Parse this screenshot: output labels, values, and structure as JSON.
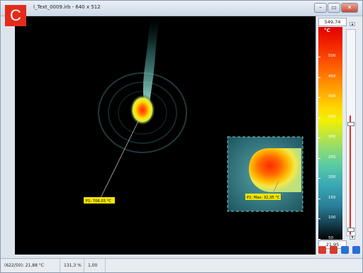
{
  "window": {
    "title": "l_Text_0009.irb - 640 x 512",
    "buttons": {
      "minimize": "–",
      "maximize": "▭",
      "close": "✕"
    }
  },
  "badge": {
    "letter": "C",
    "color": "#e32b1c"
  },
  "scale": {
    "max_value": "549,74",
    "min_value": "21,95",
    "unit": "°C",
    "ticks": [
      "500",
      "450",
      "400",
      "350",
      "300",
      "250",
      "200",
      "150",
      "100",
      "50"
    ],
    "handle_level_upper": 0.55,
    "handle_level_lower": 0.02
  },
  "markers": {
    "p1": {
      "label": "P1: 706,03 °C"
    },
    "p2": {
      "label": "P2, Max: 32,35 °C"
    }
  },
  "toolbar": {
    "icons": [
      {
        "name": "red-tool-icon",
        "color": "#d93b2a"
      },
      {
        "name": "red-tool-icon-2",
        "color": "#d93b2a"
      },
      {
        "name": "blue-tool-icon",
        "color": "#2a6fd9"
      },
      {
        "name": "blue-tool-icon-2",
        "color": "#2a6fd9"
      }
    ]
  },
  "status": {
    "coords": "(622/50): 21,88 °C",
    "zoom": "131,3 %",
    "emissivity": "1,00"
  }
}
